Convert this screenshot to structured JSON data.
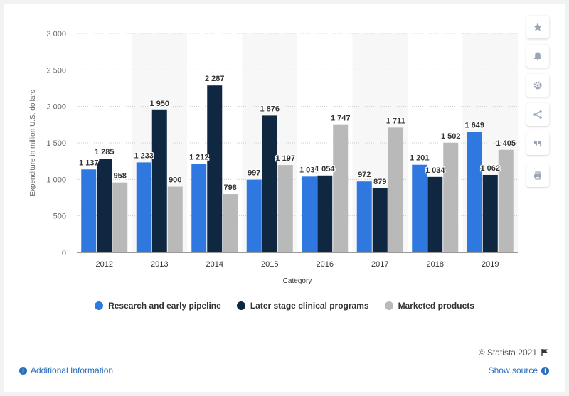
{
  "chart_data": {
    "type": "bar",
    "categories": [
      "2012",
      "2013",
      "2014",
      "2015",
      "2016",
      "2017",
      "2018",
      "2019"
    ],
    "series": [
      {
        "name": "Research and early pipeline",
        "color": "#2f78e0",
        "values": [
          1137,
          1233,
          1212,
          997,
          1039,
          972,
          1201,
          1649
        ],
        "labels": [
          "1 137",
          "1 233",
          "1 212",
          "997",
          "1 039",
          "972",
          "1 201",
          "1 649"
        ]
      },
      {
        "name": "Later stage clinical programs",
        "color": "#0f2740",
        "values": [
          1285,
          1950,
          2287,
          1876,
          1054,
          879,
          1034,
          1062
        ],
        "labels": [
          "1 285",
          "1 950",
          "2 287",
          "1 876",
          "1 054",
          "879",
          "1 034",
          "1 062"
        ]
      },
      {
        "name": "Marketed products",
        "color": "#b9b9b9",
        "values": [
          958,
          900,
          798,
          1197,
          1747,
          1711,
          1502,
          1405
        ],
        "labels": [
          "958",
          "900",
          "798",
          "1 197",
          "1 747",
          "1 711",
          "1 502",
          "1 405"
        ]
      }
    ],
    "xlabel": "Category",
    "ylabel": "Expenditure in million U.S. dollars",
    "ylim": [
      0,
      3000
    ],
    "yticks": [
      0,
      500,
      1000,
      1500,
      2000,
      2500,
      3000
    ],
    "ytick_labels": [
      "0",
      "500",
      "1 000",
      "1 500",
      "2 000",
      "2 500",
      "3 000"
    ],
    "grid": true,
    "legend_position": "bottom"
  },
  "credits": "© Statista 2021",
  "footer": {
    "additional_info": "Additional Information",
    "show_source": "Show source"
  },
  "toolbar_icons": [
    "star-icon",
    "bell-icon",
    "gear-icon",
    "share-icon",
    "quote-icon",
    "print-icon"
  ]
}
